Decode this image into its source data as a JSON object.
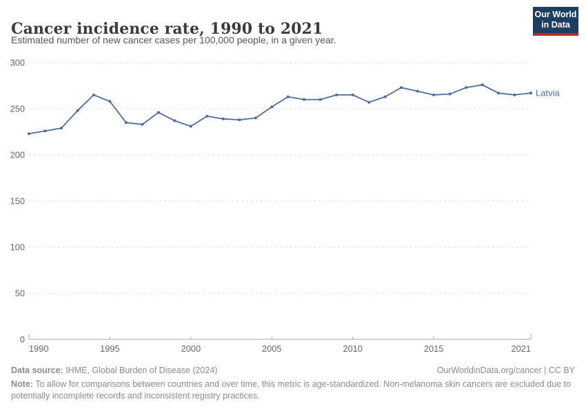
{
  "header": {
    "title": "Cancer incidence rate, 1990 to 2021",
    "subtitle": "Estimated number of new cancer cases per 100,000 people, in a given year."
  },
  "logo": {
    "line1": "Our World",
    "line2": "in Data",
    "bg_color": "#1d3d63",
    "accent_color": "#c32728"
  },
  "chart_data": {
    "type": "line",
    "title": "Cancer incidence rate, 1990 to 2021",
    "xlabel": "",
    "ylabel": "",
    "x": [
      1990,
      1991,
      1992,
      1993,
      1994,
      1995,
      1996,
      1997,
      1998,
      1999,
      2000,
      2001,
      2002,
      2003,
      2004,
      2005,
      2006,
      2007,
      2008,
      2009,
      2010,
      2011,
      2012,
      2013,
      2014,
      2015,
      2016,
      2017,
      2018,
      2019,
      2020,
      2021
    ],
    "series": [
      {
        "name": "Latvia",
        "color": "#4c6ba0",
        "values": [
          223,
          226,
          229,
          248,
          265,
          258,
          235,
          233,
          246,
          237,
          231,
          242,
          239,
          238,
          240,
          252,
          263,
          260,
          260,
          265,
          265,
          257,
          263,
          273,
          269,
          265,
          266,
          273,
          276,
          267,
          265,
          267
        ]
      }
    ],
    "ylim": [
      0,
      300
    ],
    "yticks": [
      0,
      50,
      100,
      150,
      200,
      250,
      300
    ],
    "xticks": [
      1990,
      1995,
      2000,
      2005,
      2010,
      2015,
      2021
    ],
    "grid": "horizontal-dashed",
    "legend": "end-of-line-label",
    "colors": {
      "gridline": "#dcdcdc",
      "axis": "#a5a5a5",
      "tick_label": "#666666"
    }
  },
  "footer": {
    "source_label": "Data source:",
    "source_text": " IHME, Global Burden of Disease (2024)",
    "attribution": "OurWorldinData.org/cancer | CC BY",
    "note_label": "Note:",
    "note_text": " To allow for comparisons between countries and over time, this metric is age-standardized. Non-melanoma skin cancers are excluded due to potentially incomplete records and inconsistent registry practices."
  }
}
